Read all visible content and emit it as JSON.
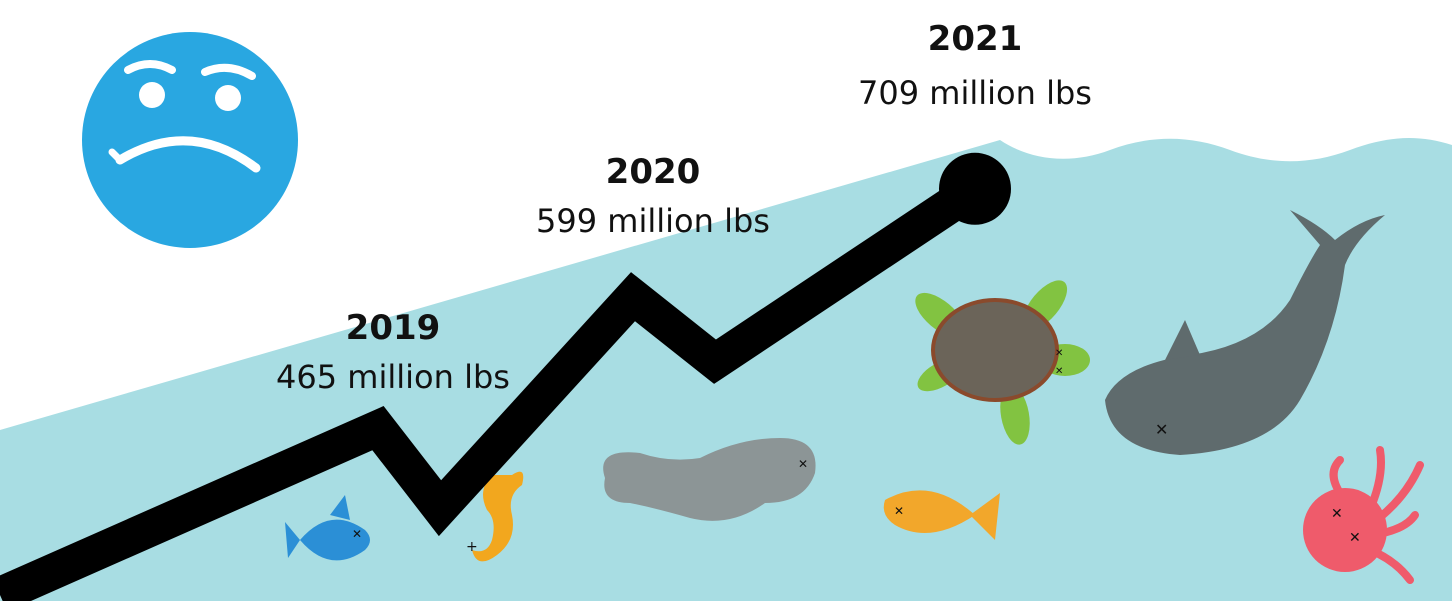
{
  "chart_data": {
    "type": "line",
    "categories": [
      "2019",
      "2020",
      "2021"
    ],
    "values": [
      465,
      599,
      709
    ],
    "unit": "million lbs",
    "data_labels": [
      "465 million lbs",
      "599 million lbs",
      "709 million lbs"
    ],
    "title": "",
    "xlabel": "",
    "ylabel": "",
    "ylim": [
      300,
      720
    ],
    "grid": false,
    "line_color": "#000000"
  },
  "colors": {
    "ocean": "#a8dde3",
    "emoji": "#29a7e1",
    "emoji_features": "#ffffff",
    "whale": "#5f6b6d",
    "manatee": "#8c9596",
    "turtle_shell": "#6b6459",
    "turtle_skin": "#82c341",
    "fish_blue": "#2b8fd6",
    "fish_orange": "#f2a72b",
    "seahorse": "#f2a71e",
    "octopus": "#ef5b6b"
  },
  "icons": {
    "emoji": "sad-face-icon",
    "animals": [
      "fish-icon",
      "seahorse-icon",
      "manatee-icon",
      "turtle-icon",
      "fish-icon",
      "whale-icon",
      "octopus-icon"
    ]
  }
}
